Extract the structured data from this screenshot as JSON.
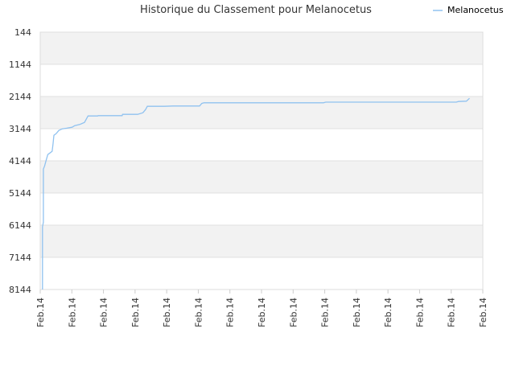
{
  "chart_data": {
    "type": "line",
    "title": "Historique du Classement pour Melanocetus",
    "xlabel": "",
    "ylabel": "",
    "y_inverted": true,
    "ylim": [
      8144,
      144
    ],
    "yticks": [
      144,
      1144,
      2144,
      3144,
      4144,
      5144,
      6144,
      7144,
      8144
    ],
    "xticks": [
      "Feb.14",
      "Feb.14",
      "Feb.14",
      "Feb.14",
      "Feb.14",
      "Feb.14",
      "Feb.14",
      "Feb.14",
      "Feb.14",
      "Feb.14",
      "Feb.14",
      "Feb.14",
      "Feb.14",
      "Feb.14",
      "Feb.14"
    ],
    "legend": {
      "position": "top-right"
    },
    "grid": "horizontal alternating bands",
    "colors": {
      "line": "#90c2f0",
      "band": "#f2f2f2",
      "grid": "#e0e0e0",
      "axis": "#cccccc"
    },
    "series": [
      {
        "name": "Melanocetus",
        "points": [
          [
            0.005,
            8144
          ],
          [
            0.005,
            6200
          ],
          [
            0.007,
            6050
          ],
          [
            0.007,
            4400
          ],
          [
            0.01,
            4300
          ],
          [
            0.013,
            4150
          ],
          [
            0.017,
            3950
          ],
          [
            0.022,
            3900
          ],
          [
            0.027,
            3850
          ],
          [
            0.029,
            3600
          ],
          [
            0.031,
            3350
          ],
          [
            0.036,
            3300
          ],
          [
            0.042,
            3200
          ],
          [
            0.05,
            3150
          ],
          [
            0.06,
            3130
          ],
          [
            0.072,
            3100
          ],
          [
            0.078,
            3050
          ],
          [
            0.09,
            3010
          ],
          [
            0.1,
            2950
          ],
          [
            0.108,
            2750
          ],
          [
            0.13,
            2750
          ],
          [
            0.131,
            2740
          ],
          [
            0.185,
            2740
          ],
          [
            0.186,
            2700
          ],
          [
            0.22,
            2700
          ],
          [
            0.232,
            2650
          ],
          [
            0.238,
            2550
          ],
          [
            0.242,
            2450
          ],
          [
            0.28,
            2450
          ],
          [
            0.3,
            2440
          ],
          [
            0.36,
            2440
          ],
          [
            0.365,
            2360
          ],
          [
            0.37,
            2340
          ],
          [
            0.64,
            2340
          ],
          [
            0.645,
            2320
          ],
          [
            0.94,
            2320
          ],
          [
            0.945,
            2300
          ],
          [
            0.963,
            2290
          ],
          [
            0.97,
            2200
          ]
        ]
      }
    ]
  }
}
